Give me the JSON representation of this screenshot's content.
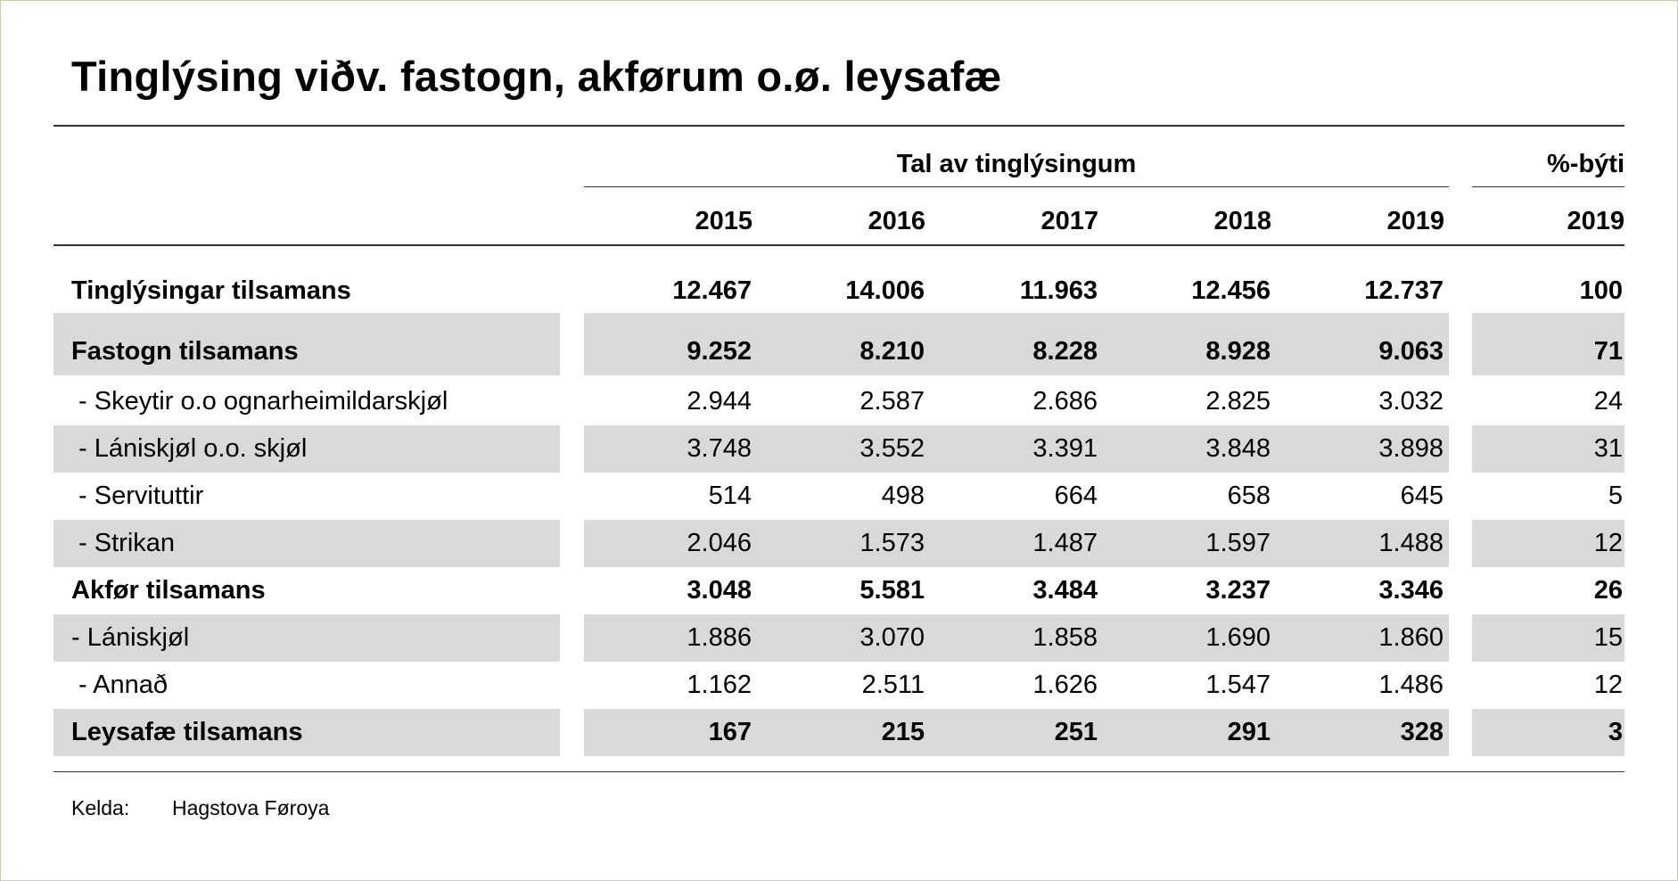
{
  "title": "Tinglýsing viðv. fastogn, akførum o.ø. leysafæ",
  "header": {
    "group_main": "Tal av tinglýsingum",
    "group_share": "%-býti",
    "years": [
      "2015",
      "2016",
      "2017",
      "2018",
      "2019"
    ],
    "share_year": "2019"
  },
  "rows": [
    {
      "label": "Tinglýsingar tilsamans",
      "bold": true,
      "values": [
        "12.467",
        "14.006",
        "11.963",
        "12.456",
        "12.737"
      ],
      "share": "100"
    },
    {
      "label": "Fastogn tilsamans",
      "bold": true,
      "values": [
        "9.252",
        "8.210",
        "8.228",
        "8.928",
        "9.063"
      ],
      "share": "71"
    },
    {
      "label": " - Skeytir o.o ognarheimildarskjøl",
      "bold": false,
      "values": [
        "2.944",
        "2.587",
        "2.686",
        "2.825",
        "3.032"
      ],
      "share": "24"
    },
    {
      "label": " - Lániskjøl o.o. skjøl",
      "bold": false,
      "values": [
        "3.748",
        "3.552",
        "3.391",
        "3.848",
        "3.898"
      ],
      "share": "31"
    },
    {
      "label": " - Servituttir",
      "bold": false,
      "values": [
        "514",
        "498",
        "664",
        "658",
        "645"
      ],
      "share": "5"
    },
    {
      "label": " - Strikan",
      "bold": false,
      "values": [
        "2.046",
        "1.573",
        "1.487",
        "1.597",
        "1.488"
      ],
      "share": "12"
    },
    {
      "label": "Akfør tilsamans",
      "bold": true,
      "values": [
        "3.048",
        "5.581",
        "3.484",
        "3.237",
        "3.346"
      ],
      "share": "26"
    },
    {
      "label": "- Lániskjøl",
      "bold": false,
      "values": [
        "1.886",
        "3.070",
        "1.858",
        "1.690",
        "1.860"
      ],
      "share": "15"
    },
    {
      "label": " - Annað",
      "bold": false,
      "values": [
        "1.162",
        "2.511",
        "1.626",
        "1.547",
        "1.486"
      ],
      "share": "12"
    },
    {
      "label": "Leysafæ tilsamans",
      "bold": true,
      "values": [
        "167",
        "215",
        "251",
        "291",
        "328"
      ],
      "share": "3"
    }
  ],
  "footer": {
    "source_label": "Kelda:",
    "source_value": "Hagstova Føroya"
  },
  "colors": {
    "band": "#d9d9d9",
    "frame": "#c7cdb4"
  }
}
